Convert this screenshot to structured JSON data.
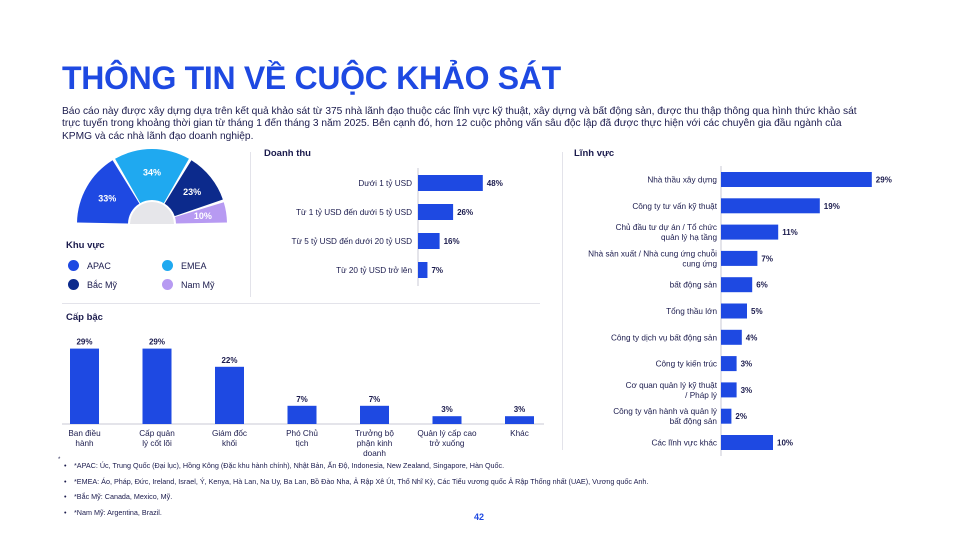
{
  "title": "THÔNG TIN VỀ CUỘC KHẢO SÁT",
  "intro": "Báo cáo này được xây dựng dựa trên kết quả khảo sát từ 375 nhà lãnh đạo thuộc các lĩnh vực kỹ thuật, xây dựng và bất động sản, được thu thập thông qua hình thức khảo sát trực tuyến trong khoảng thời gian từ tháng 1 đến tháng 3 năm 2025. Bên cạnh đó, hơn 12 cuộc phỏng vấn sâu độc lập đã được thực hiện với các chuyên gia đầu ngành của KPMG và các nhà lãnh đạo doanh nghiệp.",
  "region": {
    "legend_title": "Khu vực",
    "legend": [
      {
        "label": "APAC",
        "color": "#1e49e2"
      },
      {
        "label": "EMEA",
        "color": "#1fa9f0"
      },
      {
        "label": "Bắc Mỹ",
        "color": "#0c2a8c"
      },
      {
        "label": "Nam Mỹ",
        "color": "#b79af2"
      }
    ]
  },
  "revenue": {
    "title": "Doanh thu"
  },
  "sector": {
    "title": "Lĩnh vực"
  },
  "level": {
    "title": "Cấp bậc"
  },
  "chart_data": [
    {
      "type": "pie",
      "subtype": "semicircle",
      "categories": [
        "APAC",
        "EMEA",
        "Bắc Mỹ",
        "Nam Mỹ"
      ],
      "values": [
        33,
        34,
        23,
        10
      ],
      "labels": [
        "33%",
        "34%",
        "23%",
        "10%"
      ],
      "colors": [
        "#1e49e2",
        "#1fa9f0",
        "#0c2a8c",
        "#b79af2"
      ],
      "legend": "bottom-left"
    },
    {
      "type": "bar",
      "orientation": "horizontal",
      "title": "Doanh thu",
      "categories": [
        "Dưới 1 tỷ USD",
        "Từ 1 tỷ USD đến dưới 5 tỷ USD",
        "Từ 5 tỷ USD đến dưới 20 tỷ USD",
        "Từ 20 tỷ USD trở lên"
      ],
      "values": [
        48,
        26,
        16,
        7
      ],
      "labels": [
        "48%",
        "26%",
        "16%",
        "7%"
      ],
      "color": "#1e49e2"
    },
    {
      "type": "bar",
      "orientation": "horizontal",
      "title": "Lĩnh vực",
      "categories": [
        [
          "Nhà thầu xây dựng"
        ],
        [
          "Công ty tư vấn kỹ thuật"
        ],
        [
          "Chủ đầu tư dự án / Tổ chức",
          "quản lý hạ tầng"
        ],
        [
          "Nhà sản xuất / Nhà cung ứng chuỗi",
          "cung ứng"
        ],
        [
          "bất động sản"
        ],
        [
          "Tổng thầu lớn"
        ],
        [
          "Công ty dịch vụ bất động sản"
        ],
        [
          "Công ty kiến trúc"
        ],
        [
          "Cơ quan quản lý kỹ thuật",
          "/ Pháp lý"
        ],
        [
          "Công ty vận hành và quản lý",
          "bất động sản"
        ],
        [
          "Các lĩnh vực khác"
        ]
      ],
      "values": [
        29,
        19,
        11,
        7,
        6,
        5,
        4,
        3,
        3,
        2,
        10
      ],
      "labels": [
        "29%",
        "19%",
        "11%",
        "7%",
        "6%",
        "5%",
        "4%",
        "3%",
        "3%",
        "2%",
        "10%"
      ],
      "color": "#1e49e2"
    },
    {
      "type": "bar",
      "orientation": "vertical",
      "title": "Cấp bậc",
      "categories": [
        [
          "Ban điều",
          "hành"
        ],
        [
          "Cấp quản",
          "lý cốt lõi"
        ],
        [
          "Giám đốc",
          "khối"
        ],
        [
          "Phó Chủ",
          "tịch"
        ],
        [
          "Trưởng bộ",
          "phận kinh",
          "doanh"
        ],
        [
          "Quản lý cấp cao",
          "trở xuống"
        ],
        [
          "Khác"
        ]
      ],
      "values": [
        29,
        29,
        22,
        7,
        7,
        3,
        3
      ],
      "labels": [
        "29%",
        "29%",
        "22%",
        "7%",
        "7%",
        "3%",
        "3%"
      ],
      "color": "#1e49e2"
    }
  ],
  "footnotes": [
    "*APAC: Úc, Trung Quốc (Đại lục), Hồng Kông (Đặc khu hành chính), Nhật Bản, Ấn Độ, Indonesia, New Zealand, Singapore, Hàn Quốc.",
    "*EMEA: Áo, Pháp, Đức, Ireland, Israel, Ý, Kenya, Hà Lan, Na Uy, Ba Lan, Bồ Đào Nha, Ả Rập Xê Út, Thổ Nhĩ Kỳ, Các Tiểu vương quốc Ả Rập Thống nhất (UAE), Vương quốc Anh.",
    "*Bắc Mỹ: Canada, Mexico, Mỹ.",
    "*Nam Mỹ: Argentina, Brazil."
  ],
  "footnote_marker": "*",
  "page_number": "42"
}
